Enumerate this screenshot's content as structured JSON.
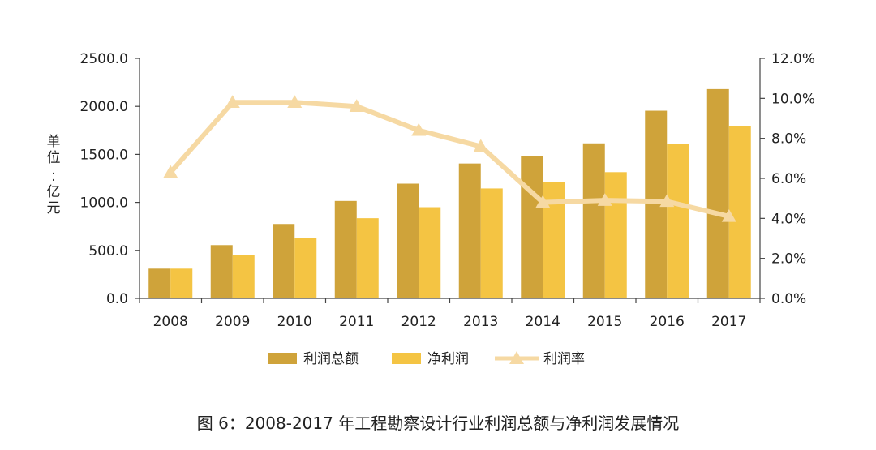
{
  "caption": "图 6：2008-2017 年工程勘察设计行业利润总额与净利润发展情况",
  "chart_data": {
    "type": "bar",
    "categories": [
      "2008",
      "2009",
      "2010",
      "2011",
      "2012",
      "2013",
      "2014",
      "2015",
      "2016",
      "2017"
    ],
    "series": [
      {
        "name": "利润总额",
        "type": "bar",
        "axis": "left",
        "color": "#CFA33A",
        "values": [
          310,
          555,
          775,
          1015,
          1195,
          1405,
          1485,
          1615,
          1955,
          2180
        ]
      },
      {
        "name": "净利润",
        "type": "bar",
        "axis": "left",
        "color": "#F4C443",
        "values": [
          310,
          450,
          630,
          835,
          950,
          1145,
          1215,
          1315,
          1610,
          1795
        ]
      },
      {
        "name": "利润率",
        "type": "line",
        "axis": "right",
        "color": "#F6D9A3",
        "values": [
          6.3,
          9.8,
          9.8,
          9.6,
          8.4,
          7.6,
          4.8,
          4.9,
          4.85,
          4.1
        ]
      }
    ],
    "ylabel": "单位：亿元",
    "ylim": [
      0,
      2500
    ],
    "yticks": [
      "0.0",
      "500.0",
      "1000.0",
      "1500.0",
      "2000.0",
      "2500.0"
    ],
    "y2lim": [
      0,
      12
    ],
    "y2ticks": [
      "0.0%",
      "2.0%",
      "4.0%",
      "6.0%",
      "8.0%",
      "10.0%",
      "12.0%"
    ],
    "legend_position": "bottom",
    "grid": false
  }
}
